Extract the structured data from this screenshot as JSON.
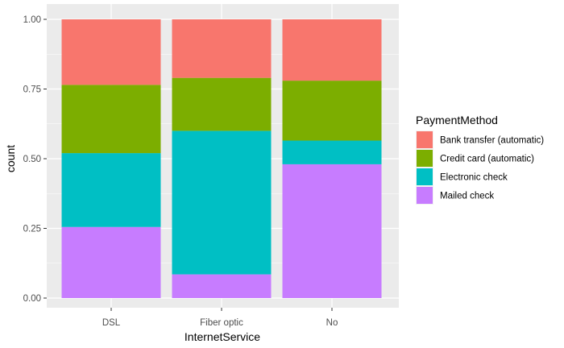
{
  "chart_data": {
    "type": "bar",
    "stacked": true,
    "categories": [
      "DSL",
      "Fiber optic",
      "No"
    ],
    "xlabel": "InternetService",
    "ylabel": "count",
    "ylim": [
      0,
      1
    ],
    "yticks": [
      "0.00",
      "0.25",
      "0.50",
      "0.75",
      "1.00"
    ],
    "grid": true,
    "legend": {
      "title": "PaymentMethod",
      "position": "right"
    },
    "series": [
      {
        "name": "Bank transfer (automatic)",
        "color": "#F8766D",
        "values": [
          0.235,
          0.21,
          0.22
        ]
      },
      {
        "name": "Credit card (automatic)",
        "color": "#7CAE00",
        "values": [
          0.245,
          0.19,
          0.215
        ]
      },
      {
        "name": "Electronic check",
        "color": "#00BFC4",
        "values": [
          0.265,
          0.515,
          0.085
        ]
      },
      {
        "name": "Mailed check",
        "color": "#C77CFF",
        "values": [
          0.255,
          0.085,
          0.48
        ]
      }
    ],
    "stack_order_bottom_to_top": [
      "Mailed check",
      "Electronic check",
      "Credit card (automatic)",
      "Bank transfer (automatic)"
    ],
    "panel_background": "#EBEBEB",
    "gridline_color": "#FFFFFF"
  }
}
